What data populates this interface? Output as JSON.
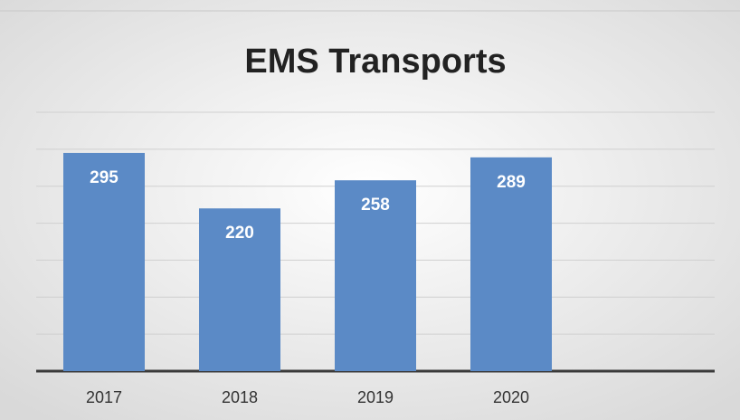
{
  "chart_data": {
    "type": "bar",
    "title": "EMS Transports",
    "categories": [
      "2017",
      "2018",
      "2019",
      "2020",
      null
    ],
    "values": [
      295,
      220,
      258,
      289,
      null
    ],
    "color": "#5b8ac6",
    "ylim": [
      0,
      350
    ],
    "yticks": [
      0,
      50,
      100,
      150,
      200,
      250,
      300,
      350
    ],
    "grid": true
  }
}
